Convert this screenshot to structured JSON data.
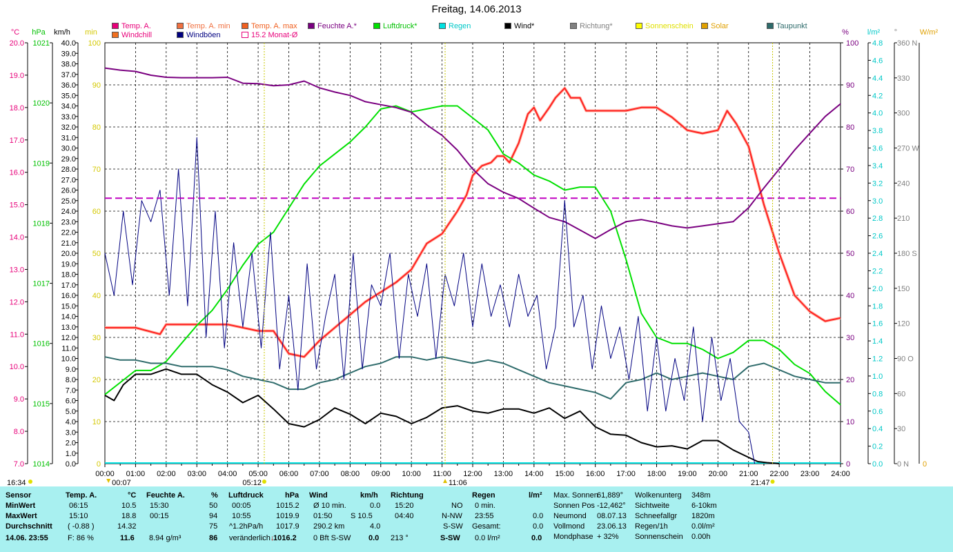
{
  "title": "Freitag, 14.06.2013",
  "legend": [
    {
      "label": "Temp. A.",
      "color": "#e8007a",
      "text_color": "#e8007a"
    },
    {
      "label": "Temp. A. min",
      "color": "#f07040",
      "text_color": "#f07040"
    },
    {
      "label": "Temp. A. max",
      "color": "#f06020",
      "text_color": "#f06020"
    },
    {
      "label": "Feuchte A.*",
      "color": "#7a0080",
      "text_color": "#7a0080"
    },
    {
      "label": "Luftdruck*",
      "color": "#00e000",
      "text_color": "#00c000"
    },
    {
      "label": "Regen",
      "color": "#00e0e0",
      "text_color": "#00c8c8"
    },
    {
      "label": "Wind*",
      "color": "#000000",
      "text_color": "#000000"
    },
    {
      "label": "Richtung*",
      "color": "#808080",
      "text_color": "#808080"
    },
    {
      "label": "Sonnenschein",
      "color": "#ffff00",
      "text_color": "#e0e000"
    },
    {
      "label": "Solar",
      "color": "#e0a000",
      "text_color": "#e0a000"
    },
    {
      "label": "Taupunkt",
      "color": "#2e6b6b",
      "text_color": "#2e6b6b"
    },
    {
      "label": "Windchill",
      "color": "#f07020",
      "text_color": "#e8007a"
    },
    {
      "label": "Windböen",
      "color": "#000080",
      "text_color": "#000080"
    },
    {
      "label": "15.2 Monat-Ø",
      "color": "#ffffff",
      "text_color": "#e8007a"
    }
  ],
  "axis_units": {
    "temp": "°C",
    "pressure": "hPa",
    "wind": "km/h",
    "sun": "min",
    "humidity": "%",
    "rain": "l/m²",
    "direction": "°",
    "solar": "W/m²"
  },
  "chart_data": {
    "type": "line",
    "title": "Freitag, 14.06.2013",
    "x_ticks": [
      "00:00",
      "01:00",
      "02:00",
      "03:00",
      "04:00",
      "05:00",
      "06:00",
      "07:00",
      "08:00",
      "09:00",
      "10:00",
      "11:00",
      "12:00",
      "13:00",
      "14:00",
      "15:00",
      "16:00",
      "17:00",
      "18:00",
      "19:00",
      "20:00",
      "21:00",
      "22:00",
      "23:00",
      "24:00"
    ],
    "axes": {
      "temp": {
        "range": [
          7.0,
          20.0
        ],
        "ticks": [
          "7.0",
          "8.0",
          "9.0",
          "10.0",
          "11.0",
          "12.0",
          "13.0",
          "14.0",
          "15.0",
          "16.0",
          "17.0",
          "18.0",
          "19.0",
          "20.0"
        ]
      },
      "pressure": {
        "range": [
          1014,
          1021
        ],
        "ticks": [
          "1014",
          "1015",
          "1016",
          "1017",
          "1018",
          "1019",
          "1020",
          "1021"
        ]
      },
      "wind": {
        "range": [
          0,
          40
        ],
        "ticks": [
          "0.0",
          "1.0",
          "2.0",
          "3.0",
          "4.0",
          "5.0",
          "6.0",
          "7.0",
          "8.0",
          "9.0",
          "10.0",
          "11.0",
          "12.0",
          "13.0",
          "14.0",
          "15.0",
          "16.0",
          "17.0",
          "18.0",
          "19.0",
          "20.0",
          "21.0",
          "22.0",
          "23.0",
          "24.0",
          "25.0",
          "26.0",
          "27.0",
          "28.0",
          "29.0",
          "30.0",
          "31.0",
          "32.0",
          "33.0",
          "34.0",
          "35.0",
          "36.0",
          "37.0",
          "38.0",
          "39.0",
          "40.0"
        ]
      },
      "sun": {
        "range": [
          0,
          100
        ],
        "ticks": [
          "0",
          "10",
          "20",
          "30",
          "40",
          "50",
          "60",
          "70",
          "80",
          "90",
          "100"
        ]
      },
      "humidity": {
        "range": [
          0,
          100
        ],
        "ticks": [
          "0",
          "10",
          "20",
          "30",
          "40",
          "50",
          "60",
          "70",
          "80",
          "90",
          "100"
        ]
      },
      "rain": {
        "range": [
          0,
          4.8
        ],
        "ticks": [
          "0.0",
          "0.2",
          "0.4",
          "0.6",
          "0.8",
          "1.0",
          "1.2",
          "1.4",
          "1.6",
          "1.8",
          "2.0",
          "2.2",
          "2.4",
          "2.6",
          "2.8",
          "3.0",
          "3.2",
          "3.4",
          "3.6",
          "3.8",
          "4.0",
          "4.2",
          "4.4",
          "4.6",
          "4.8"
        ]
      },
      "direction": {
        "range": [
          0,
          360
        ],
        "ticks": [
          "0  N",
          "30",
          "60",
          "90  O",
          "120",
          "150",
          "180  S",
          "210",
          "240",
          "270  W",
          "300",
          "330",
          "360  N"
        ]
      },
      "solar": {
        "range": [
          0,
          0
        ],
        "ticks": [
          "0",
          "W/m²"
        ]
      }
    },
    "series": [
      {
        "name": "Temp. A.",
        "axis": "temp",
        "color": "#ff2020",
        "x": [
          0,
          1,
          1.8,
          2,
          3,
          4,
          5,
          5.5,
          6,
          6.5,
          7,
          7.5,
          8,
          8.5,
          9,
          9.5,
          10,
          10.5,
          11,
          11.5,
          11.8,
          12,
          12.3,
          12.6,
          12.8,
          13,
          13.2,
          13.5,
          13.8,
          14,
          14.2,
          14.5,
          14.7,
          15,
          15.2,
          15.5,
          15.7,
          16,
          16.5,
          17,
          17.5,
          18,
          18.5,
          19,
          19.5,
          20,
          20.3,
          20.6,
          21,
          21.5,
          22,
          22.5,
          23,
          23.5,
          24
        ],
        "y": [
          11.2,
          11.2,
          11.0,
          11.3,
          11.3,
          11.3,
          11.1,
          11.1,
          10.4,
          10.3,
          10.8,
          11.2,
          11.6,
          12.0,
          12.3,
          12.6,
          13.0,
          13.8,
          14.1,
          14.8,
          15.3,
          15.9,
          16.2,
          16.3,
          16.5,
          16.5,
          16.3,
          16.9,
          17.8,
          18.0,
          17.6,
          18.0,
          18.3,
          18.6,
          18.3,
          18.3,
          17.9,
          17.9,
          17.9,
          17.9,
          18.0,
          18.0,
          17.7,
          17.3,
          17.2,
          17.3,
          17.9,
          17.5,
          16.8,
          15.0,
          13.5,
          12.2,
          11.7,
          11.4,
          11.5
        ]
      },
      {
        "name": "Luftdruck*",
        "axis": "pressure",
        "color": "#00e000",
        "x": [
          0,
          0.5,
          1,
          1.5,
          2,
          2.5,
          3,
          3.5,
          4,
          4.5,
          5,
          5.5,
          6,
          6.5,
          7,
          7.5,
          8,
          8.5,
          9,
          9.5,
          10,
          10.5,
          11,
          11.5,
          12,
          12.5,
          13,
          13.5,
          14,
          14.5,
          15,
          15.5,
          16,
          16.5,
          17,
          17.5,
          18,
          18.5,
          19,
          19.5,
          20,
          20.5,
          21,
          21.5,
          22,
          22.5,
          23,
          23.5,
          24
        ],
        "y": [
          1015.15,
          1015.35,
          1015.55,
          1015.55,
          1015.7,
          1016.0,
          1016.3,
          1016.55,
          1016.9,
          1017.3,
          1017.65,
          1017.85,
          1018.25,
          1018.65,
          1018.95,
          1019.15,
          1019.35,
          1019.6,
          1019.9,
          1019.95,
          1019.85,
          1019.9,
          1019.95,
          1019.95,
          1019.75,
          1019.55,
          1019.15,
          1019.0,
          1018.8,
          1018.7,
          1018.55,
          1018.6,
          1018.6,
          1018.2,
          1017.4,
          1016.5,
          1016.1,
          1016.0,
          1016.0,
          1015.9,
          1015.75,
          1015.85,
          1016.05,
          1016.05,
          1015.9,
          1015.65,
          1015.5,
          1015.2,
          1014.98
        ]
      },
      {
        "name": "Feuchte A.*",
        "axis": "humidity",
        "color": "#7a0080",
        "x": [
          0,
          0.5,
          1,
          1.5,
          2,
          2.5,
          3,
          3.5,
          4,
          4.5,
          5,
          5.5,
          6,
          6.5,
          7,
          7.5,
          8,
          8.5,
          9,
          9.5,
          10,
          10.5,
          11,
          11.5,
          12,
          12.5,
          13,
          13.5,
          14,
          14.5,
          15,
          15.5,
          16,
          16.5,
          17,
          17.5,
          18,
          18.5,
          19,
          19.5,
          20,
          20.5,
          21,
          21.5,
          22,
          22.5,
          23,
          23.5,
          24
        ],
        "y": [
          94,
          93.5,
          93.2,
          92.3,
          91.8,
          91.7,
          91.7,
          91.7,
          91.8,
          90.4,
          90.3,
          89.8,
          90.0,
          90.9,
          89.3,
          88.3,
          87.5,
          86.0,
          85.3,
          84.6,
          83.5,
          80.5,
          78.0,
          74.5,
          70.0,
          66.5,
          64.5,
          63.0,
          60.7,
          58.5,
          57.5,
          55.5,
          53.5,
          55.6,
          57.5,
          58.0,
          57.3,
          56.5,
          56.0,
          56.5,
          57.0,
          57.5,
          60.8,
          65.5,
          70.0,
          74.5,
          78.5,
          82.5,
          85.5
        ]
      },
      {
        "name": "Wind*",
        "axis": "wind",
        "color": "#000000",
        "x": [
          0,
          0.3,
          0.6,
          1,
          1.5,
          2,
          2.5,
          3,
          3.5,
          4,
          4.5,
          5,
          5.5,
          6,
          6.5,
          7,
          7.5,
          8,
          8.5,
          9,
          9.5,
          10,
          10.5,
          11,
          11.5,
          12,
          12.5,
          13,
          13.5,
          14,
          14.5,
          15,
          15.5,
          16,
          16.5,
          17,
          17.5,
          18,
          18.5,
          19,
          19.5,
          20,
          20.5,
          21,
          21.3,
          21.6,
          22
        ],
        "y": [
          6.5,
          6.0,
          7.5,
          8.5,
          8.5,
          9.0,
          8.5,
          8.5,
          7.5,
          6.8,
          5.8,
          6.5,
          5.2,
          3.8,
          3.5,
          4.2,
          5.3,
          4.7,
          3.8,
          4.8,
          4.5,
          3.8,
          4.4,
          5.3,
          5.5,
          5.0,
          4.8,
          5.2,
          5.2,
          4.8,
          5.3,
          4.3,
          5.0,
          3.5,
          2.8,
          2.7,
          2.0,
          1.6,
          1.7,
          1.4,
          2.2,
          2.2,
          1.3,
          0.6,
          0.2,
          0.1,
          0.0
        ]
      },
      {
        "name": "Taupunkt",
        "axis": "temp",
        "color": "#2e6b6b",
        "x": [
          0,
          0.5,
          1,
          1.5,
          2,
          2.5,
          3,
          3.5,
          4,
          4.5,
          5,
          5.5,
          6,
          6.5,
          7,
          7.5,
          8,
          8.5,
          9,
          9.5,
          10,
          10.5,
          11,
          11.5,
          12,
          12.5,
          13,
          13.5,
          14,
          14.5,
          15,
          15.5,
          16,
          16.5,
          17,
          17.5,
          18,
          18.5,
          19,
          19.5,
          20,
          20.5,
          21,
          21.5,
          22,
          22.5,
          23,
          23.5,
          24
        ],
        "y": [
          10.3,
          10.2,
          10.2,
          10.1,
          10.1,
          10.0,
          10.0,
          10.0,
          9.9,
          9.7,
          9.6,
          9.5,
          9.3,
          9.3,
          9.5,
          9.6,
          9.8,
          10.0,
          10.1,
          10.3,
          10.3,
          10.2,
          10.3,
          10.2,
          10.1,
          10.2,
          10.1,
          9.9,
          9.7,
          9.5,
          9.4,
          9.3,
          9.2,
          9.0,
          9.5,
          9.6,
          9.8,
          9.6,
          9.7,
          9.8,
          9.7,
          9.6,
          10.0,
          10.1,
          9.9,
          9.7,
          9.6,
          9.5,
          9.5
        ]
      },
      {
        "name": "Windböen",
        "axis": "wind",
        "color": "#000080",
        "x": [
          0,
          0.3,
          0.6,
          0.9,
          1.2,
          1.5,
          1.8,
          2.1,
          2.4,
          2.7,
          3.0,
          3.3,
          3.6,
          3.9,
          4.2,
          4.5,
          4.8,
          5.1,
          5.4,
          5.7,
          6.0,
          6.3,
          6.6,
          6.9,
          7.2,
          7.5,
          7.8,
          8.1,
          8.4,
          8.7,
          9.0,
          9.3,
          9.6,
          9.9,
          10.2,
          10.5,
          10.8,
          11.1,
          11.4,
          11.7,
          12.0,
          12.3,
          12.6,
          12.9,
          13.2,
          13.5,
          13.8,
          14.1,
          14.4,
          14.7,
          15.0,
          15.3,
          15.6,
          15.9,
          16.2,
          16.5,
          16.8,
          17.1,
          17.4,
          17.7,
          18.0,
          18.3,
          18.6,
          18.9,
          19.2,
          19.5,
          19.8,
          20.1,
          20.4,
          20.7,
          21.0,
          21.2
        ],
        "y": [
          20,
          16,
          24,
          17,
          25,
          23,
          26,
          16,
          28,
          15,
          31,
          12,
          24,
          11,
          21,
          13,
          20,
          11,
          22,
          9,
          16,
          7,
          19,
          9,
          14,
          18,
          8,
          20,
          9,
          17,
          15,
          20,
          10,
          18,
          14,
          19,
          10,
          18,
          15,
          20,
          13,
          19,
          14,
          17,
          13,
          18,
          14,
          16,
          9,
          13,
          25,
          13,
          16,
          9,
          15,
          10,
          13,
          8,
          14,
          5,
          12,
          5,
          10,
          6,
          13,
          4,
          12,
          6,
          10,
          4,
          3,
          0
        ]
      },
      {
        "name": "15.2 Monat-Ø",
        "axis": "temp",
        "color": "#c000c0",
        "dash": true,
        "x": [
          0,
          24
        ],
        "y": [
          15.2,
          15.2
        ]
      }
    ],
    "markers": {
      "sunrise": "05:12",
      "sunset": "21:47",
      "day_start": "16:34",
      "moon_times": [
        "00:07",
        "11:06"
      ]
    }
  },
  "footer": {
    "headers": {
      "sensor": "Sensor",
      "temp": "Temp. A.",
      "temp_unit": "°C",
      "hum": "Feuchte A.",
      "hum_unit": "%",
      "press": "Luftdruck",
      "press_unit": "hPa",
      "wind": "Wind",
      "wind_unit": "km/h",
      "dir": "Richtung",
      "rain": "Regen",
      "rain_unit": "l/m²"
    },
    "rows": {
      "min": {
        "label": "MinWert",
        "temp_time": "06:15",
        "temp_val": "10.5",
        "hum_time": "15:30",
        "hum_val": "50",
        "press_time": "00:05",
        "press_val": "1015.2",
        "wind_desc": "Ø 10 min.",
        "wind_val": "0.0",
        "dir_time": "15:20",
        "dir_val": "NO",
        "rain_desc": "0 min.",
        "rain_val": ""
      },
      "max": {
        "label": "MaxWert",
        "temp_time": "15:10",
        "temp_val": "18.8",
        "hum_time": "00:15",
        "hum_val": "94",
        "press_time": "10:55",
        "press_val": "1019.9",
        "wind_desc": "01:50",
        "wind_desc2": "S 10.5",
        "wind_val": "",
        "dir_time": "04:40",
        "dir_val": "N-NW",
        "rain_desc": "23:55",
        "rain_val": "0.0"
      },
      "avg": {
        "label": "Durchschnitt",
        "temp_time": "( -0.88 )",
        "temp_val": "14.32",
        "hum_time": "",
        "hum_val": "75",
        "press_time": "^1.2hPa/h",
        "press_val": "1017.9",
        "wind_desc": "290.2 km",
        "wind_val": "4.0",
        "dir_time": "",
        "dir_val": "S-SW",
        "rain_desc": "Gesamt:",
        "rain_val": "0.0"
      },
      "cur": {
        "label": "14.06. 23:55",
        "temp_time": "F: 86 %",
        "temp_val": "11.6",
        "hum_time": "8.94 g/m³",
        "hum_val": "86",
        "press_time": "veränderlich",
        "press_val": "1016.2",
        "wind_desc": "0 Bft S-SW",
        "wind_val": "0.0",
        "dir_time": "213 °",
        "dir_val": "S-SW",
        "rain_desc": "0.0 l/m²",
        "rain_val": "0.0"
      }
    },
    "info1": [
      {
        "k": "Max. Sonnen",
        "v": "61,889°"
      },
      {
        "k": "Sonnen Pos",
        "v": "-12,462°"
      },
      {
        "k": "Neumond",
        "v": "08.07.13"
      },
      {
        "k": "Vollmond",
        "v": "23.06.13"
      },
      {
        "k": "Mondphase",
        "v": "+ 32%"
      }
    ],
    "info2": [
      {
        "k": "Wolkenunterg",
        "v": "348m"
      },
      {
        "k": "Sichtweite",
        "v": "6-10km"
      },
      {
        "k": "Schneefallgr",
        "v": "1820m"
      },
      {
        "k": "Regen/1h",
        "v": "0.0l/m²"
      },
      {
        "k": "Sonnenschein",
        "v": "0.00h"
      }
    ]
  }
}
